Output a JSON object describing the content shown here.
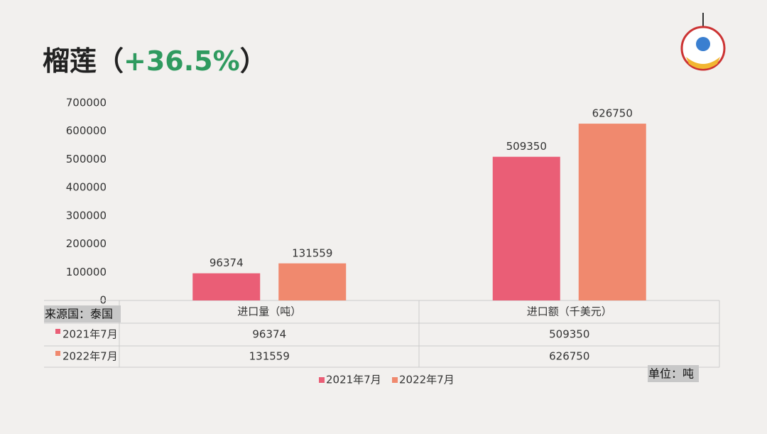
{
  "chart_data": {
    "type": "bar",
    "title": "榴莲（",
    "highlight": "+36.5%",
    "title_end": "）",
    "categories": [
      "进口量（吨）",
      "进口额（千美元）"
    ],
    "series": [
      {
        "name": "2021年7月",
        "color": "#ea5e76",
        "values": [
          96374,
          509350
        ]
      },
      {
        "name": "2022年7月",
        "color": "#f0896e",
        "values": [
          131559,
          626750
        ]
      }
    ],
    "ylim": [
      0,
      700000
    ],
    "yticks": [
      0,
      100000,
      200000,
      300000,
      400000,
      500000,
      600000,
      700000
    ],
    "grid": false,
    "data_labels": true,
    "legend": "bottom",
    "annotations": [
      "来源国：泰国",
      "单位：吨"
    ]
  }
}
